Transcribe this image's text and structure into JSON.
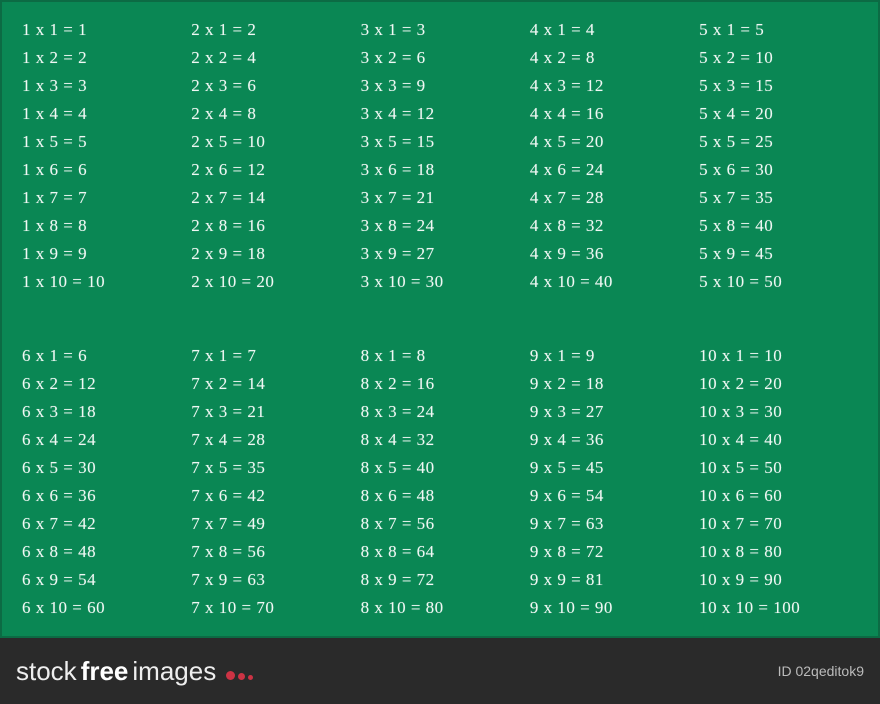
{
  "chalkboard": {
    "background_color": "#0a8754",
    "text_color": "#f0f8f4",
    "font_family": "Comic Sans MS",
    "rows": [
      {
        "columns": [
          {
            "base": 1,
            "lines": [
              "1 x 1 = 1",
              "1 x 2 = 2",
              "1 x 3 = 3",
              "1 x 4 = 4",
              "1 x 5 = 5",
              "1 x 6 = 6",
              "1 x 7 = 7",
              "1 x 8 = 8",
              "1 x 9 = 9",
              "1 x 10 = 10"
            ]
          },
          {
            "base": 2,
            "lines": [
              "2 x 1 = 2",
              "2 x 2 = 4",
              "2 x 3 = 6",
              "2 x 4 = 8",
              "2 x 5 = 10",
              "2 x 6 = 12",
              "2 x 7 = 14",
              "2 x 8 = 16",
              "2 x 9 = 18",
              "2 x 10 = 20"
            ]
          },
          {
            "base": 3,
            "lines": [
              "3 x 1 = 3",
              "3 x 2 = 6",
              "3 x 3 = 9",
              "3 x 4 = 12",
              "3 x 5 = 15",
              "3 x 6 = 18",
              "3 x 7 = 21",
              "3 x 8 = 24",
              "3 x 9 = 27",
              "3 x 10 = 30"
            ]
          },
          {
            "base": 4,
            "lines": [
              "4 x 1 = 4",
              "4 x 2 = 8",
              "4 x 3 = 12",
              "4 x 4 = 16",
              "4 x 5 = 20",
              "4 x 6 = 24",
              "4 x 7 = 28",
              "4 x 8 = 32",
              "4 x 9 = 36",
              "4 x 10 = 40"
            ]
          },
          {
            "base": 5,
            "lines": [
              "5 x 1 = 5",
              "5 x 2 = 10",
              "5 x 3 = 15",
              "5 x 4 = 20",
              "5 x 5 = 25",
              "5 x 6 = 30",
              "5 x 7 = 35",
              "5 x 8 = 40",
              "5 x 9 = 45",
              "5 x 10 = 50"
            ]
          }
        ]
      },
      {
        "columns": [
          {
            "base": 6,
            "lines": [
              "6 x 1 = 6",
              "6 x 2 = 12",
              "6 x 3 = 18",
              "6 x 4 = 24",
              "6 x 5 = 30",
              "6 x 6 = 36",
              "6 x 7 = 42",
              "6 x 8 = 48",
              "6 x 9 = 54",
              "6 x 10 = 60"
            ]
          },
          {
            "base": 7,
            "lines": [
              "7 x 1 = 7",
              "7 x 2 = 14",
              "7 x 3 = 21",
              "7 x 4 = 28",
              "7 x 5 = 35",
              "7 x 6 = 42",
              "7 x 7 = 49",
              "7 x 8 = 56",
              "7 x 9 = 63",
              "7 x 10 = 70"
            ]
          },
          {
            "base": 8,
            "lines": [
              "8 x 1 = 8",
              "8 x 2 = 16",
              "8 x 3 = 24",
              "8 x 4 = 32",
              "8 x 5 = 40",
              "8 x 6 = 48",
              "8 x 7 = 56",
              "8 x 8 = 64",
              "8 x 9 = 72",
              "8 x 10 = 80"
            ]
          },
          {
            "base": 9,
            "lines": [
              "9 x 1 = 9",
              "9 x 2 = 18",
              "9 x 3 = 27",
              "9 x 4 = 36",
              "9 x 5 = 45",
              "9 x 6 = 54",
              "9 x 7 = 63",
              "9 x 8 = 72",
              "9 x 9 = 81",
              "9 x 10 = 90"
            ]
          },
          {
            "base": 10,
            "lines": [
              "10 x 1 = 10",
              "10 x 2 = 20",
              "10 x 3 = 30",
              "10 x 4 = 40",
              "10 x 5 = 50",
              "10 x 6 = 60",
              "10 x 7 = 70",
              "10 x 8 = 80",
              "10 x 9 = 90",
              "10 x 10 = 100"
            ]
          }
        ]
      }
    ]
  },
  "footer": {
    "logo_stock": "stock",
    "logo_free": "free",
    "logo_images": "images",
    "image_id": "ID 02qeditok9",
    "bubble_color": "#cc3344",
    "background_color": "#2a2a2a"
  }
}
